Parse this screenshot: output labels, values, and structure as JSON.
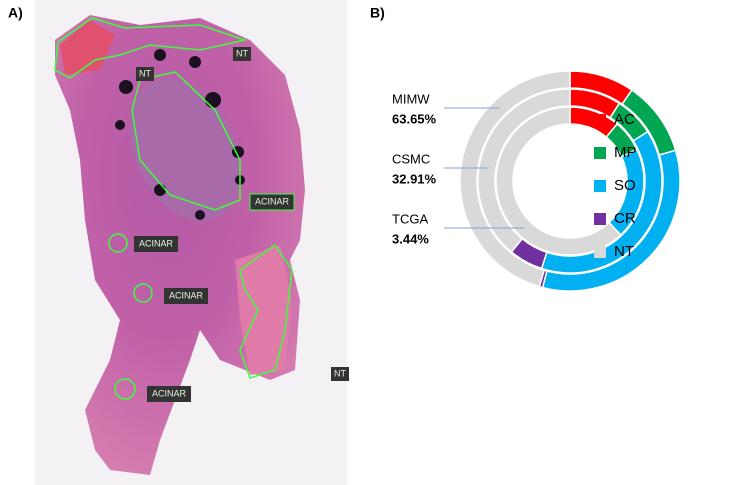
{
  "panel_a": {
    "label": "A)",
    "annotations": [
      "NT",
      "NT",
      "ACINAR",
      "ACINAR",
      "ACINAR",
      "ACINAR",
      "NT"
    ]
  },
  "chart_data": {
    "type": "donut",
    "panel_label": "B)",
    "categories": [
      "AC",
      "MP",
      "SO",
      "CR",
      "NT"
    ],
    "colors": [
      "#ff0000",
      "#00a651",
      "#00b0f0",
      "#7030a0",
      "#d9d9d9"
    ],
    "series": [
      {
        "name": "MIMW",
        "label": "63.65%",
        "values": [
          9.5,
          11,
          33.5,
          0.5,
          45.5
        ]
      },
      {
        "name": "CSMC",
        "label": "32.91%",
        "values": [
          9,
          7,
          39,
          6,
          39
        ]
      },
      {
        "name": "TCGA",
        "label": "3.44%",
        "values": [
          11,
          7,
          20,
          0,
          62
        ]
      }
    ]
  }
}
